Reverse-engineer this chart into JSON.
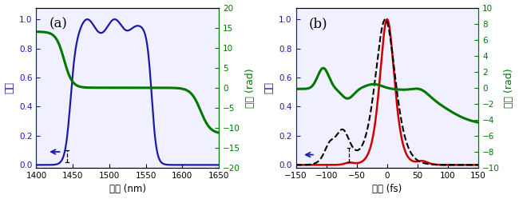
{
  "panel_a": {
    "label": "(a)",
    "xlabel": "波長 (nm)",
    "ylabel_left": "強度",
    "ylabel_right": "位相 (rad)",
    "xlim": [
      1400,
      1650
    ],
    "ylim_left": [
      -0.02,
      1.08
    ],
    "ylim_right": [
      -20,
      20
    ],
    "yticks_left": [
      0,
      0.2,
      0.4,
      0.6,
      0.8,
      1.0
    ],
    "yticks_right": [
      -20,
      -15,
      -10,
      -5,
      0,
      5,
      10,
      15,
      20
    ],
    "xticks": [
      1400,
      1450,
      1500,
      1550,
      1600,
      1650
    ],
    "intensity_color": "#1a1aaa",
    "phase_color": "#007700",
    "bg_color": "#f0f0ff"
  },
  "panel_b": {
    "label": "(b)",
    "xlabel": "時間 (fs)",
    "ylabel_left": "強度",
    "ylabel_right": "位相 (rad)",
    "xlim": [
      -150,
      150
    ],
    "ylim_left": [
      -0.02,
      1.08
    ],
    "ylim_right": [
      -10,
      10
    ],
    "yticks_left": [
      0,
      0.2,
      0.4,
      0.6,
      0.8,
      1.0
    ],
    "yticks_right": [
      -10,
      -8,
      -6,
      -4,
      -2,
      0,
      2,
      4,
      6,
      8,
      10
    ],
    "xticks": [
      -150,
      -100,
      -50,
      0,
      50,
      100,
      150
    ],
    "intensity_red_color": "#cc0000",
    "dashed_color": "#000000",
    "phase_color": "#007700",
    "intensity_blue_color": "#1a1aaa",
    "bg_color": "#f0f0ff"
  }
}
